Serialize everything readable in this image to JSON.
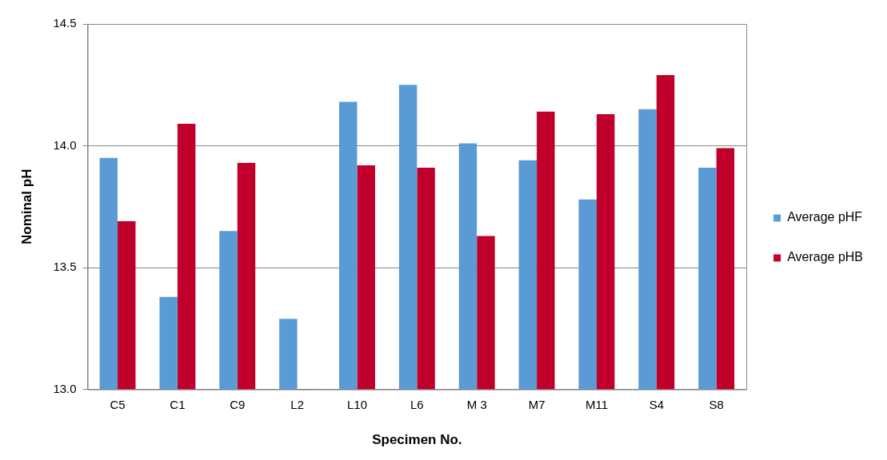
{
  "chart_data": {
    "type": "bar",
    "xlabel": "Specimen No.",
    "ylabel": "Nominal pH",
    "categories": [
      "C5",
      "C1",
      "C9",
      "L2",
      "L10",
      "L6",
      "M 3",
      "M7",
      "M11",
      "S4",
      "S8"
    ],
    "series": [
      {
        "name": "Average pHF",
        "color": "#5b9bd5",
        "values": [
          13.95,
          13.38,
          13.65,
          13.29,
          14.18,
          14.25,
          14.01,
          13.94,
          13.78,
          14.15,
          13.91
        ]
      },
      {
        "name": "Average pHB",
        "color": "#c0002a",
        "values": [
          13.69,
          14.09,
          13.93,
          13.0,
          13.92,
          13.91,
          13.63,
          14.14,
          14.13,
          14.29,
          13.99
        ]
      }
    ],
    "ylim": [
      13.0,
      14.5
    ],
    "yticks": [
      {
        "value": 13.0,
        "label": "13.0"
      },
      {
        "value": 13.5,
        "label": "13.5"
      },
      {
        "value": 14.0,
        "label": "14.0"
      },
      {
        "value": 14.5,
        "label": "14.5"
      }
    ],
    "grid": "y",
    "legend": "right"
  }
}
